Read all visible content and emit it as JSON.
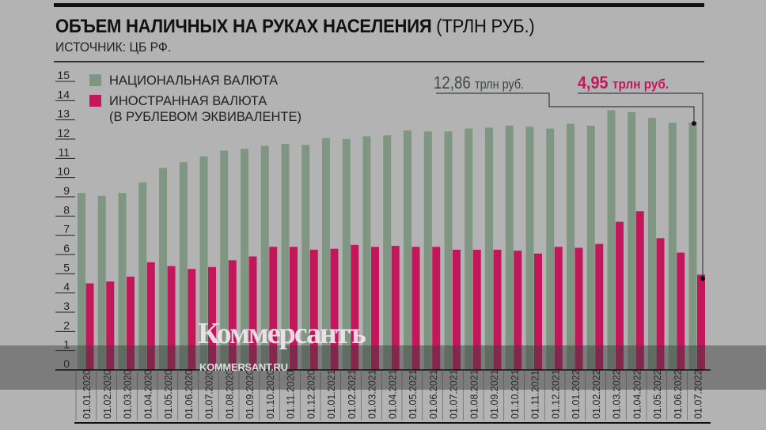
{
  "chart_data": {
    "type": "bar",
    "title": "ОБЪЕМ НАЛИЧНЫХ НА РУКАХ НАСЕЛЕНИЯ",
    "title_unit": "(ТРЛН РУБ.)",
    "source": "ИСТОЧНИК: ЦБ РФ.",
    "ylim": [
      0,
      15
    ],
    "yticks": [
      "0",
      "1",
      "2",
      "3",
      "4",
      "5",
      "6",
      "7",
      "8",
      "9",
      "10",
      "11",
      "12",
      "13",
      "14",
      "15"
    ],
    "legend_position": "top-left",
    "categories": [
      "01.01.2020",
      "01.02.2020",
      "01.03.2020",
      "01.04.2020",
      "01.05.2020",
      "01.06.2020",
      "01.07.2020",
      "01.08.2020",
      "01.09.2020",
      "01.10.2020",
      "01.11.2020",
      "01.12.2020",
      "01.01.2021",
      "01.02.2021",
      "01.03.2021",
      "01.04.2021",
      "01.05.2021",
      "01.06.2021",
      "01.07.2021",
      "01.08.2021",
      "01.09.2021",
      "01.10.2021",
      "01.11.2021",
      "01.12.2021",
      "01.01.2022",
      "01.02.2022",
      "01.03.2022",
      "01.04.2022",
      "01.05.2022",
      "01.06.2022",
      "01.07.2022"
    ],
    "series": [
      {
        "name": "НАЦИОНАЛЬНАЯ ВАЛЮТА",
        "color": "#7f9683",
        "values": [
          9.2,
          9.05,
          9.2,
          9.75,
          10.5,
          10.8,
          11.1,
          11.4,
          11.5,
          11.65,
          11.75,
          11.7,
          12.05,
          12.0,
          12.15,
          12.2,
          12.45,
          12.4,
          12.4,
          12.55,
          12.6,
          12.7,
          12.65,
          12.55,
          12.8,
          12.7,
          13.5,
          13.4,
          13.1,
          12.85,
          12.86
        ]
      },
      {
        "name": "ИНОСТРАННАЯ ВАЛЮТА",
        "name_line2": "(В РУБЛЕВОМ ЭКВИВАЛЕНТЕ)",
        "color": "#c2185b",
        "values": [
          4.5,
          4.6,
          4.85,
          5.6,
          5.4,
          5.25,
          5.35,
          5.7,
          5.9,
          6.4,
          6.4,
          6.25,
          6.3,
          6.5,
          6.4,
          6.45,
          6.4,
          6.4,
          6.25,
          6.25,
          6.25,
          6.2,
          6.05,
          6.4,
          6.35,
          6.55,
          7.7,
          8.25,
          6.85,
          6.1,
          4.95
        ]
      }
    ],
    "annotations": [
      {
        "value": "12,86",
        "unit": "трлн руб.",
        "series": 0,
        "category": "01.07.2022"
      },
      {
        "value": "4,95",
        "unit": "трлн руб.",
        "series": 1,
        "category": "01.07.2022"
      }
    ]
  },
  "watermark": {
    "logo": "Коммерсантъ",
    "site": "KOMMERSANT.RU"
  }
}
